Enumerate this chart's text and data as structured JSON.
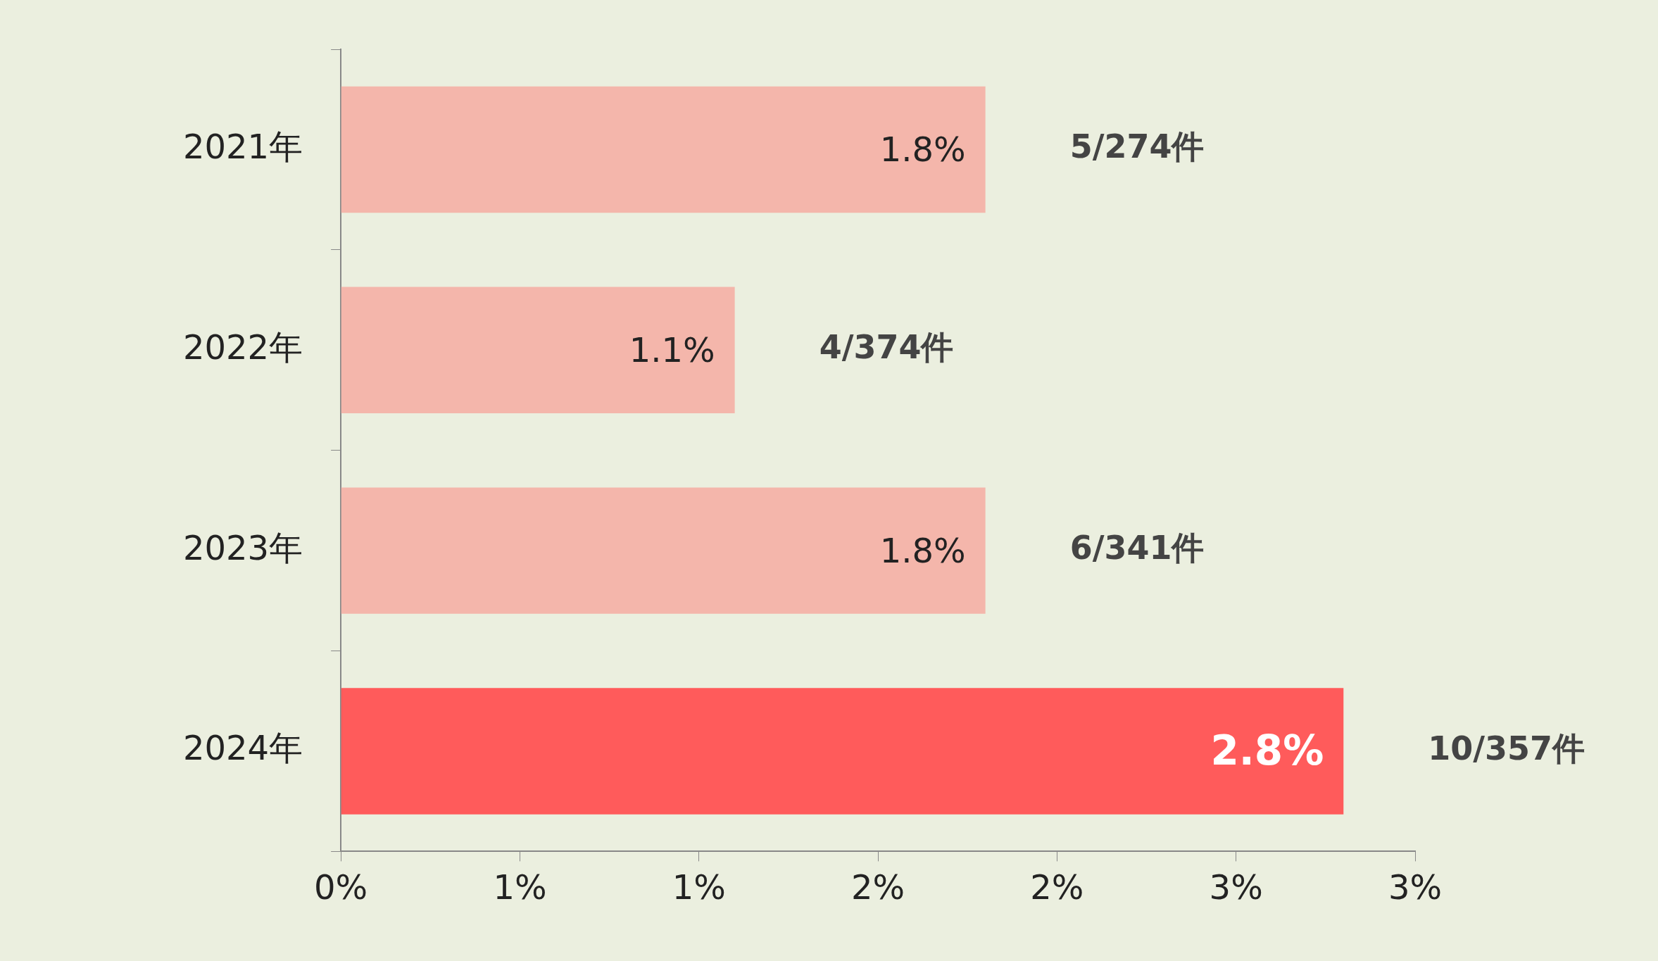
{
  "chart_data": {
    "type": "bar",
    "orientation": "horizontal",
    "categories": [
      "2021年",
      "2022年",
      "2023年",
      "2024年"
    ],
    "values": [
      1.8,
      1.1,
      1.8,
      2.8
    ],
    "colors": [
      "#f4b6ab",
      "#f4b6ab",
      "#f4b6ab",
      "#ff5b5b"
    ],
    "value_labels": [
      "1.8%",
      "1.1%",
      "1.8%",
      "2.8%"
    ],
    "xlim": [
      0,
      3
    ],
    "xticks": [
      {
        "value": 0,
        "label": "0%"
      },
      {
        "value": 0.5,
        "label": "1%"
      },
      {
        "value": 1,
        "label": "1%"
      },
      {
        "value": 1.5,
        "label": "2%"
      },
      {
        "value": 2,
        "label": "2%"
      },
      {
        "value": 2.5,
        "label": "3%"
      },
      {
        "value": 3,
        "label": "3%"
      }
    ],
    "annotations": [
      {
        "text": "5/274件",
        "x": 1.8,
        "y": "2021年"
      },
      {
        "text": "4/374件",
        "x": 1.1,
        "y": "2022年"
      },
      {
        "text": "6/341件",
        "x": 1.8,
        "y": "2023年"
      },
      {
        "text": "10/357件",
        "x": 2.8,
        "y": "2024年"
      }
    ],
    "grid": false,
    "legend": false
  }
}
